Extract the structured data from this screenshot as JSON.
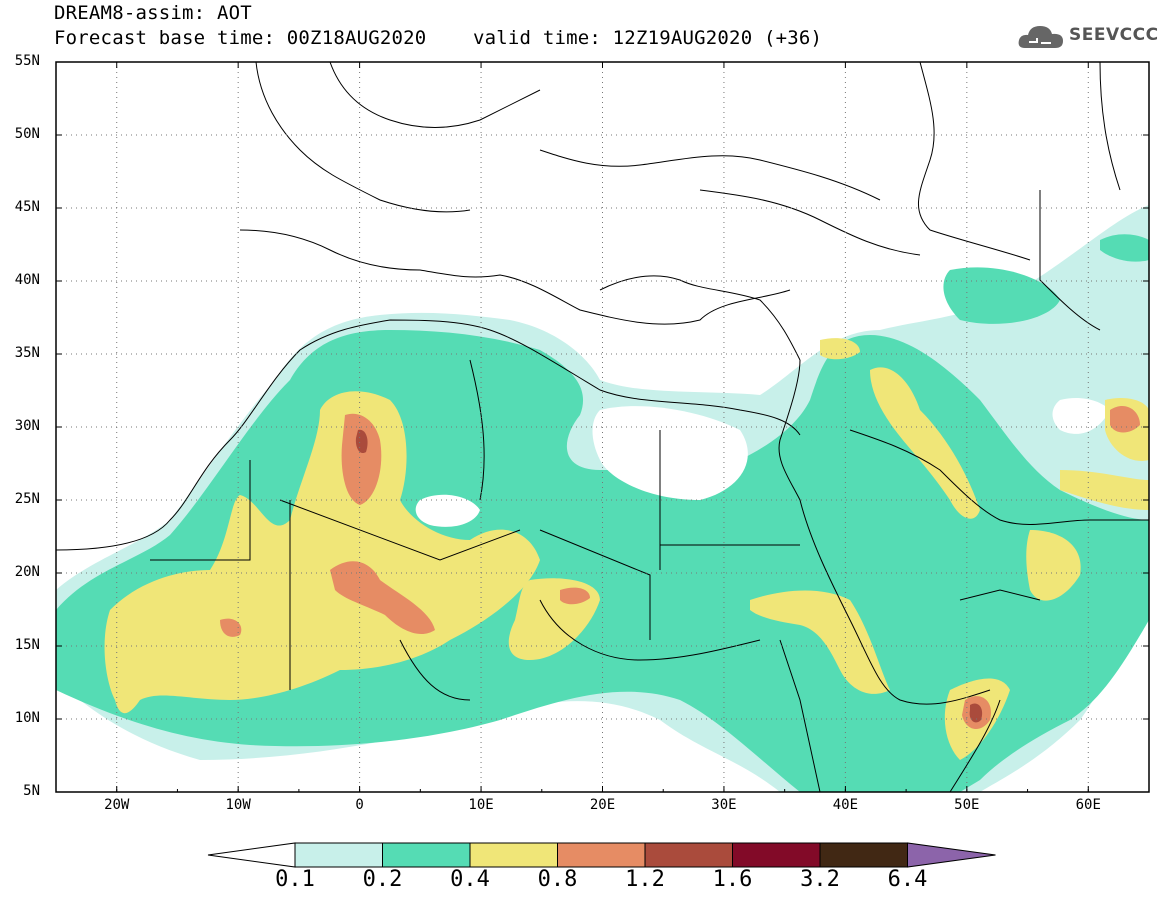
{
  "title": {
    "line1": "DREAM8-assim: AOT",
    "line2": "Forecast base time: 00Z18AUG2020    valid time: 12Z19AUG2020 (+36)"
  },
  "logo": {
    "text": "SEEVCCC",
    "icon": "cloud-icon"
  },
  "map": {
    "lon_range": [
      -25,
      65
    ],
    "lat_range": [
      5,
      55
    ],
    "lat_labels": [
      "55N",
      "50N",
      "45N",
      "40N",
      "35N",
      "30N",
      "25N",
      "20N",
      "15N",
      "10N",
      "5N"
    ],
    "lon_labels": [
      "20W",
      "10W",
      "0",
      "10E",
      "20E",
      "30E",
      "40E",
      "50E",
      "60E"
    ]
  },
  "colorbar": {
    "labels": [
      "0.1",
      "0.2",
      "0.4",
      "0.8",
      "1.2",
      "1.6",
      "3.2",
      "6.4"
    ],
    "colors": [
      "#ffffff",
      "#c8f0ea",
      "#55dcb4",
      "#f0e678",
      "#e68c64",
      "#aa4b3c",
      "#820a28",
      "#412814",
      "#8c64aa"
    ]
  }
}
